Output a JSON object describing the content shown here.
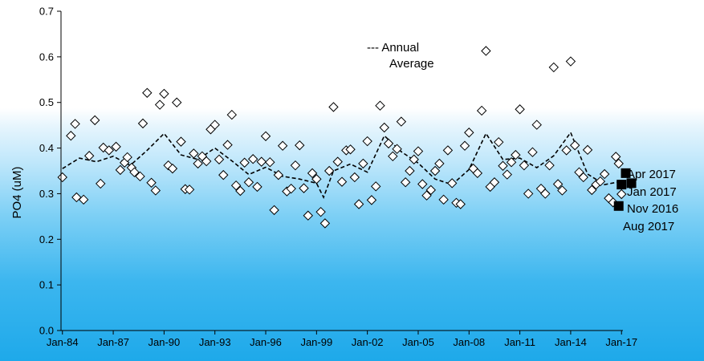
{
  "chart_data": {
    "type": "scatter",
    "title": "",
    "xlabel": "",
    "ylabel": "PO4  (uM)",
    "ylim": [
      0,
      0.7
    ],
    "yticks": [
      "0.0",
      "0.1",
      "0.2",
      "0.3",
      "0.4",
      "0.5",
      "0.6",
      "0.7"
    ],
    "xlim": [
      "1983-12",
      "2017-02"
    ],
    "xticks": [
      "Jan-84",
      "Jan-87",
      "Jan-90",
      "Jan-93",
      "Jan-96",
      "Jan-99",
      "Jan-02",
      "Jan-05",
      "Jan-08",
      "Jan-11",
      "Jan-14",
      "Jan-17"
    ],
    "grid": false,
    "legend": {
      "entries": [
        "---  Annual",
        "Average"
      ],
      "placement": "top-center"
    },
    "series": [
      {
        "name": "",
        "marker": "open-diamond",
        "points": [
          [
            "1984-01",
            0.336
          ],
          [
            "1984-07",
            0.427
          ],
          [
            "1984-10",
            0.453
          ],
          [
            "1984-11",
            0.292
          ],
          [
            "1985-04",
            0.287
          ],
          [
            "1985-08",
            0.383
          ],
          [
            "1985-12",
            0.461
          ],
          [
            "1986-04",
            0.322
          ],
          [
            "1986-06",
            0.401
          ],
          [
            "1986-10",
            0.395
          ],
          [
            "1987-03",
            0.403
          ],
          [
            "1987-06",
            0.352
          ],
          [
            "1987-09",
            0.368
          ],
          [
            "1987-11",
            0.38
          ],
          [
            "1988-02",
            0.357
          ],
          [
            "1988-04",
            0.347
          ],
          [
            "1988-08",
            0.338
          ],
          [
            "1988-10",
            0.454
          ],
          [
            "1989-01",
            0.521
          ],
          [
            "1989-04",
            0.324
          ],
          [
            "1989-07",
            0.307
          ],
          [
            "1989-10",
            0.495
          ],
          [
            "1990-01",
            0.519
          ],
          [
            "1990-04",
            0.362
          ],
          [
            "1990-07",
            0.355
          ],
          [
            "1990-10",
            0.5
          ],
          [
            "1991-01",
            0.414
          ],
          [
            "1991-04",
            0.31
          ],
          [
            "1991-07",
            0.309
          ],
          [
            "1991-10",
            0.388
          ],
          [
            "1992-01",
            0.366
          ],
          [
            "1992-04",
            0.382
          ],
          [
            "1992-07",
            0.371
          ],
          [
            "1992-10",
            0.441
          ],
          [
            "1993-01",
            0.451
          ],
          [
            "1993-04",
            0.375
          ],
          [
            "1993-07",
            0.341
          ],
          [
            "1993-10",
            0.407
          ],
          [
            "1994-01",
            0.473
          ],
          [
            "1994-04",
            0.318
          ],
          [
            "1994-07",
            0.306
          ],
          [
            "1994-10",
            0.368
          ],
          [
            "1995-01",
            0.325
          ],
          [
            "1995-04",
            0.376
          ],
          [
            "1995-07",
            0.315
          ],
          [
            "1995-10",
            0.37
          ],
          [
            "1996-01",
            0.426
          ],
          [
            "1996-04",
            0.369
          ],
          [
            "1996-07",
            0.264
          ],
          [
            "1996-10",
            0.341
          ],
          [
            "1997-01",
            0.405
          ],
          [
            "1997-04",
            0.305
          ],
          [
            "1997-07",
            0.311
          ],
          [
            "1997-10",
            0.362
          ],
          [
            "1998-01",
            0.406
          ],
          [
            "1998-04",
            0.312
          ],
          [
            "1998-07",
            0.252
          ],
          [
            "1998-10",
            0.345
          ],
          [
            "1999-01",
            0.332
          ],
          [
            "1999-04",
            0.26
          ],
          [
            "1999-07",
            0.235
          ],
          [
            "1999-10",
            0.35
          ],
          [
            "2000-01",
            0.49
          ],
          [
            "2000-04",
            0.37
          ],
          [
            "2000-07",
            0.326
          ],
          [
            "2000-10",
            0.395
          ],
          [
            "2001-01",
            0.397
          ],
          [
            "2001-04",
            0.336
          ],
          [
            "2001-07",
            0.277
          ],
          [
            "2001-10",
            0.366
          ],
          [
            "2002-01",
            0.415
          ],
          [
            "2002-04",
            0.286
          ],
          [
            "2002-07",
            0.316
          ],
          [
            "2002-10",
            0.493
          ],
          [
            "2003-01",
            0.445
          ],
          [
            "2003-04",
            0.41
          ],
          [
            "2003-07",
            0.382
          ],
          [
            "2003-10",
            0.398
          ],
          [
            "2004-01",
            0.458
          ],
          [
            "2004-04",
            0.325
          ],
          [
            "2004-07",
            0.35
          ],
          [
            "2004-10",
            0.375
          ],
          [
            "2005-01",
            0.393
          ],
          [
            "2005-04",
            0.321
          ],
          [
            "2005-07",
            0.296
          ],
          [
            "2005-10",
            0.308
          ],
          [
            "2006-01",
            0.35
          ],
          [
            "2006-04",
            0.366
          ],
          [
            "2006-07",
            0.287
          ],
          [
            "2006-10",
            0.395
          ],
          [
            "2007-01",
            0.323
          ],
          [
            "2007-04",
            0.28
          ],
          [
            "2007-07",
            0.277
          ],
          [
            "2007-10",
            0.405
          ],
          [
            "2008-01",
            0.434
          ],
          [
            "2008-04",
            0.355
          ],
          [
            "2008-07",
            0.345
          ],
          [
            "2008-10",
            0.482
          ],
          [
            "2009-01",
            0.613
          ],
          [
            "2009-04",
            0.315
          ],
          [
            "2009-07",
            0.325
          ],
          [
            "2009-10",
            0.413
          ],
          [
            "2010-01",
            0.361
          ],
          [
            "2010-04",
            0.342
          ],
          [
            "2010-07",
            0.369
          ],
          [
            "2010-10",
            0.385
          ],
          [
            "2011-01",
            0.485
          ],
          [
            "2011-04",
            0.362
          ],
          [
            "2011-07",
            0.3
          ],
          [
            "2011-10",
            0.391
          ],
          [
            "2012-01",
            0.451
          ],
          [
            "2012-04",
            0.311
          ],
          [
            "2012-07",
            0.3
          ],
          [
            "2012-10",
            0.362
          ],
          [
            "2013-01",
            0.577
          ],
          [
            "2013-04",
            0.321
          ],
          [
            "2013-07",
            0.307
          ],
          [
            "2013-10",
            0.395
          ],
          [
            "2014-01",
            0.59
          ],
          [
            "2014-04",
            0.406
          ],
          [
            "2014-07",
            0.347
          ],
          [
            "2014-10",
            0.336
          ],
          [
            "2015-01",
            0.396
          ],
          [
            "2015-04",
            0.308
          ],
          [
            "2015-07",
            0.32
          ],
          [
            "2015-10",
            0.327
          ],
          [
            "2016-01",
            0.343
          ],
          [
            "2016-04",
            0.29
          ],
          [
            "2016-07",
            0.281
          ],
          [
            "2016-09",
            0.381
          ],
          [
            "2016-11",
            0.366
          ],
          [
            "2017-01",
            0.299
          ]
        ]
      },
      {
        "name": "Annual Average",
        "style": "dashed-line",
        "points": [
          [
            "1984-01",
            0.355
          ],
          [
            "1985-01",
            0.378
          ],
          [
            "1986-01",
            0.37
          ],
          [
            "1987-01",
            0.382
          ],
          [
            "1988-01",
            0.362
          ],
          [
            "1989-01",
            0.395
          ],
          [
            "1990-01",
            0.432
          ],
          [
            "1991-01",
            0.385
          ],
          [
            "1992-01",
            0.375
          ],
          [
            "1993-01",
            0.4
          ],
          [
            "1994-01",
            0.372
          ],
          [
            "1995-01",
            0.342
          ],
          [
            "1996-01",
            0.358
          ],
          [
            "1997-01",
            0.338
          ],
          [
            "1998-01",
            0.332
          ],
          [
            "1999-01",
            0.323
          ],
          [
            "1999-06",
            0.292
          ],
          [
            "2000-01",
            0.35
          ],
          [
            "2001-01",
            0.365
          ],
          [
            "2002-01",
            0.347
          ],
          [
            "2003-01",
            0.427
          ],
          [
            "2004-01",
            0.392
          ],
          [
            "2005-01",
            0.367
          ],
          [
            "2006-01",
            0.332
          ],
          [
            "2007-01",
            0.32
          ],
          [
            "2008-01",
            0.353
          ],
          [
            "2009-01",
            0.432
          ],
          [
            "2010-01",
            0.375
          ],
          [
            "2011-01",
            0.378
          ],
          [
            "2012-01",
            0.357
          ],
          [
            "2013-01",
            0.383
          ],
          [
            "2014-01",
            0.434
          ],
          [
            "2015-01",
            0.343
          ],
          [
            "2016-01",
            0.32
          ],
          [
            "2017-01",
            0.327
          ]
        ]
      },
      {
        "name": "",
        "marker": "filled-square",
        "points": [
          [
            "2017-04",
            0.345,
            "Apr 2017"
          ],
          [
            "2017-01",
            0.32,
            "Jan 2017"
          ],
          [
            "2016-11",
            0.273,
            "Nov 2016"
          ],
          [
            "2017-08",
            0.323,
            "Aug 2017"
          ]
        ]
      }
    ],
    "annotations": [
      "Apr 2017",
      "Jan 2017",
      "Nov 2016",
      "Aug 2017"
    ]
  }
}
